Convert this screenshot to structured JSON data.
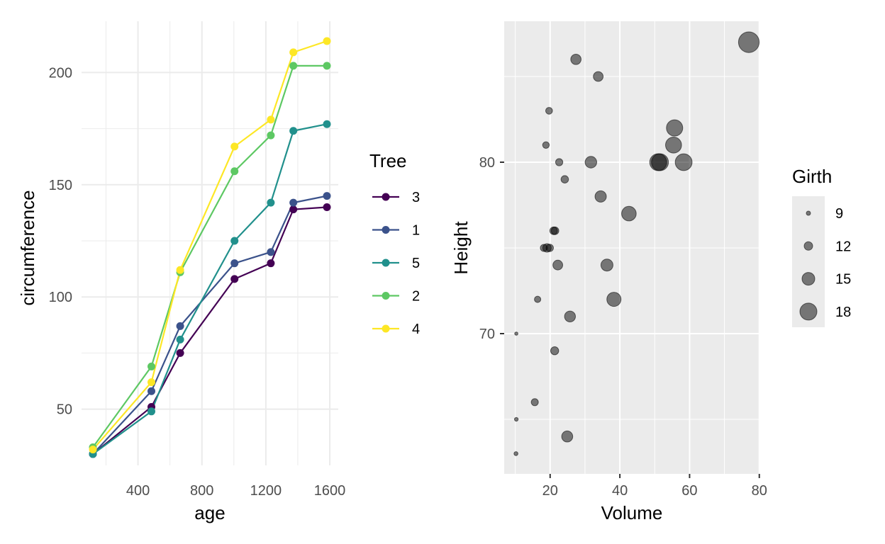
{
  "chart_data": [
    {
      "type": "line",
      "xlabel": "age",
      "ylabel": "circumference",
      "xlim": [
        118,
        1582
      ],
      "ylim": [
        30,
        214
      ],
      "x_ticks": [
        400,
        800,
        1200,
        1600
      ],
      "y_ticks": [
        50,
        100,
        150,
        200
      ],
      "grid": true,
      "legend_title": "Tree",
      "legend_placement": "right",
      "x": [
        118,
        484,
        664,
        1004,
        1231,
        1372,
        1582
      ],
      "series": [
        {
          "name": "3",
          "color": "#440154",
          "values": [
            30,
            51,
            75,
            108,
            115,
            139,
            140
          ]
        },
        {
          "name": "1",
          "color": "#3b528b",
          "values": [
            30,
            58,
            87,
            115,
            120,
            142,
            145
          ]
        },
        {
          "name": "5",
          "color": "#21908c",
          "values": [
            30,
            49,
            81,
            125,
            142,
            174,
            177
          ]
        },
        {
          "name": "2",
          "color": "#5dc863",
          "values": [
            33,
            69,
            111,
            156,
            172,
            203,
            203
          ]
        },
        {
          "name": "4",
          "color": "#fde725",
          "values": [
            32,
            62,
            112,
            167,
            179,
            209,
            214
          ]
        }
      ]
    },
    {
      "type": "scatter",
      "xlabel": "Volume",
      "ylabel": "Height",
      "xlim": [
        10.2,
        77
      ],
      "ylim": [
        63,
        87
      ],
      "x_ticks": [
        20,
        40,
        60,
        80
      ],
      "y_ticks": [
        70,
        80
      ],
      "grid": true,
      "legend_title": "Girth",
      "legend_placement": "right",
      "size_legend": [
        9,
        12,
        15,
        18
      ],
      "point_color": "#000000",
      "point_alpha": 0.5,
      "points": [
        {
          "x": 10.3,
          "y": 70,
          "size": 8.3
        },
        {
          "x": 10.3,
          "y": 65,
          "size": 8.6
        },
        {
          "x": 10.2,
          "y": 63,
          "size": 8.8
        },
        {
          "x": 16.4,
          "y": 72,
          "size": 10.5
        },
        {
          "x": 18.8,
          "y": 81,
          "size": 10.7
        },
        {
          "x": 19.7,
          "y": 83,
          "size": 10.8
        },
        {
          "x": 15.6,
          "y": 66,
          "size": 11.0
        },
        {
          "x": 18.2,
          "y": 75,
          "size": 11.0
        },
        {
          "x": 22.6,
          "y": 80,
          "size": 11.1
        },
        {
          "x": 19.9,
          "y": 75,
          "size": 11.2
        },
        {
          "x": 24.2,
          "y": 79,
          "size": 11.3
        },
        {
          "x": 21.0,
          "y": 76,
          "size": 11.4
        },
        {
          "x": 21.4,
          "y": 76,
          "size": 11.4
        },
        {
          "x": 21.3,
          "y": 69,
          "size": 11.7
        },
        {
          "x": 19.1,
          "y": 75,
          "size": 12.0
        },
        {
          "x": 22.2,
          "y": 74,
          "size": 12.9
        },
        {
          "x": 33.8,
          "y": 85,
          "size": 12.9
        },
        {
          "x": 27.4,
          "y": 86,
          "size": 13.3
        },
        {
          "x": 25.7,
          "y": 71,
          "size": 13.7
        },
        {
          "x": 24.9,
          "y": 64,
          "size": 13.8
        },
        {
          "x": 34.5,
          "y": 78,
          "size": 14.0
        },
        {
          "x": 31.7,
          "y": 80,
          "size": 14.2
        },
        {
          "x": 36.3,
          "y": 74,
          "size": 14.5
        },
        {
          "x": 38.3,
          "y": 72,
          "size": 16.0
        },
        {
          "x": 42.6,
          "y": 77,
          "size": 16.3
        },
        {
          "x": 55.4,
          "y": 81,
          "size": 17.3
        },
        {
          "x": 55.7,
          "y": 82,
          "size": 17.5
        },
        {
          "x": 58.3,
          "y": 80,
          "size": 17.9
        },
        {
          "x": 51.5,
          "y": 80,
          "size": 18.0
        },
        {
          "x": 51.0,
          "y": 80,
          "size": 18.0
        },
        {
          "x": 77.0,
          "y": 87,
          "size": 20.6
        }
      ]
    }
  ]
}
